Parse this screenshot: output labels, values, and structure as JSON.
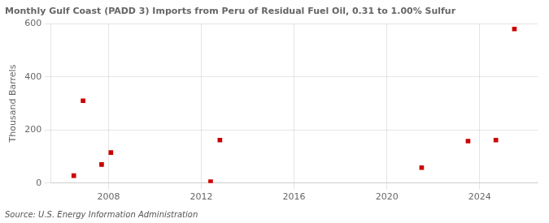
{
  "chart_data": {
    "type": "scatter",
    "title": "Monthly Gulf Coast (PADD 3) Imports from Peru of Residual Fuel Oil, 0.31 to 1.00% Sulfur",
    "ylabel": "Thousand Barrels",
    "source": "Source: U.S. Energy Information Administration",
    "x": [
      2006.5,
      2006.9,
      2007.7,
      2008.1,
      2012.4,
      2012.8,
      2021.5,
      2023.5,
      2024.7,
      2025.5
    ],
    "values": [
      28,
      310,
      70,
      115,
      5,
      162,
      58,
      158,
      162,
      580
    ],
    "color": "#cc0000",
    "marker": "square",
    "xlim": [
      2005.5,
      2026.5
    ],
    "xticks": [
      2008,
      2012,
      2016,
      2020,
      2024
    ],
    "ylim": [
      0,
      600
    ],
    "yticks": [
      0,
      200,
      400,
      600
    ],
    "grid": true
  }
}
